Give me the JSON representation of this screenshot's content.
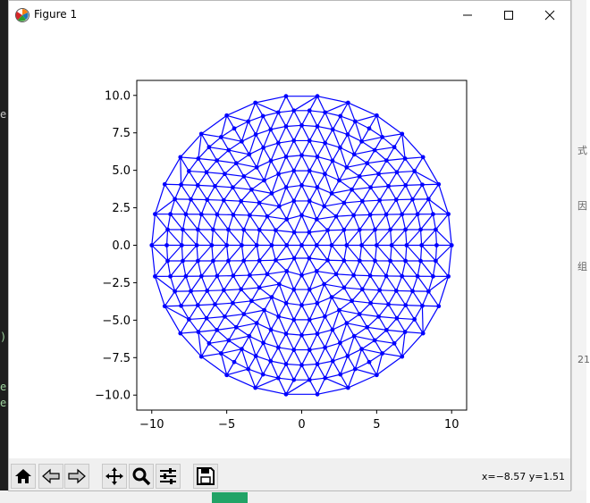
{
  "window": {
    "title": "Figure 1"
  },
  "icons": {
    "app": "matplotlib-icon",
    "minimize": "minimize-icon",
    "maximize": "maximize-icon",
    "close": "close-icon",
    "home": "home-icon",
    "back": "back-arrow-icon",
    "forward": "forward-arrow-icon",
    "pan": "pan-icon",
    "zoom": "zoom-magnifier-icon",
    "configure": "configure-subplots-icon",
    "save": "save-icon"
  },
  "toolbar": {
    "coords": "x=−8.57 y=1.51"
  },
  "chart_data": {
    "type": "scatter",
    "description_of_marks": "triangulated mesh of a disk of radius 10: points connected by line segments",
    "color": "#0000ff",
    "xlim": [
      -11,
      11
    ],
    "ylim": [
      -11,
      11
    ],
    "xticks": [
      -10,
      -5,
      0,
      5,
      10
    ],
    "yticks": [
      -10.0,
      -7.5,
      -5.0,
      -2.5,
      0.0,
      2.5,
      5.0,
      7.5,
      10.0
    ],
    "xtick_labels": [
      "−10",
      "−5",
      "0",
      "5",
      "10"
    ],
    "ytick_labels": [
      "−10.0",
      "−7.5",
      "−5.0",
      "−2.5",
      "0.0",
      "2.5",
      "5.0",
      "7.5",
      "10.0"
    ],
    "rings": [
      {
        "r": 0,
        "n": 1
      },
      {
        "r": 1,
        "n": 6
      },
      {
        "r": 2,
        "n": 12
      },
      {
        "r": 3,
        "n": 18
      },
      {
        "r": 4,
        "n": 24
      },
      {
        "r": 5,
        "n": 30
      },
      {
        "r": 6,
        "n": 36
      },
      {
        "r": 7,
        "n": 42
      },
      {
        "r": 8,
        "n": 48
      },
      {
        "r": 9,
        "n": 54
      },
      {
        "r": 10,
        "n": 30
      }
    ]
  },
  "background": {
    "left_lines": [
      "e",
      ")",
      "e",
      "e"
    ],
    "right_lines": [
      "式",
      "因",
      "组",
      "21"
    ]
  }
}
